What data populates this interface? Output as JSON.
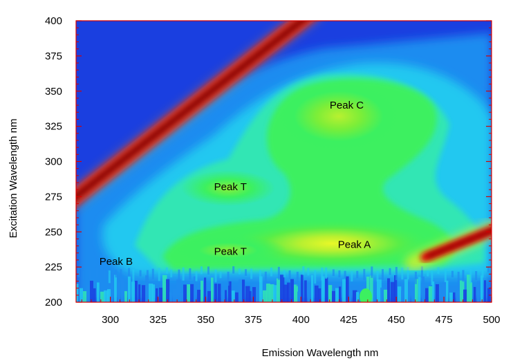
{
  "chart_data": {
    "type": "heatmap",
    "xlabel": "Emission Wavelength nm",
    "ylabel": "Excitation Wavelength nm",
    "xlim": [
      282,
      500
    ],
    "ylim": [
      200,
      400
    ],
    "x_ticks": [
      300,
      325,
      350,
      375,
      400,
      425,
      450,
      475,
      500
    ],
    "y_ticks": [
      200,
      225,
      250,
      275,
      300,
      325,
      350,
      375,
      400
    ],
    "grid": false,
    "colormap": [
      "#1a3fe0",
      "#1e8cf0",
      "#22c8f0",
      "#30e6b4",
      "#3cf060",
      "#b8f030",
      "#f0f020",
      "#f08020",
      "#e01010",
      "#8a0000"
    ],
    "annotations": [
      {
        "text": "Peak C",
        "x": 424,
        "y": 340
      },
      {
        "text": "Peak T",
        "x": 363,
        "y": 282
      },
      {
        "text": "Peak A",
        "x": 428,
        "y": 241
      },
      {
        "text": "Peak T",
        "x": 363,
        "y": 236
      },
      {
        "text": "Peak B",
        "x": 303,
        "y": 229
      }
    ]
  }
}
